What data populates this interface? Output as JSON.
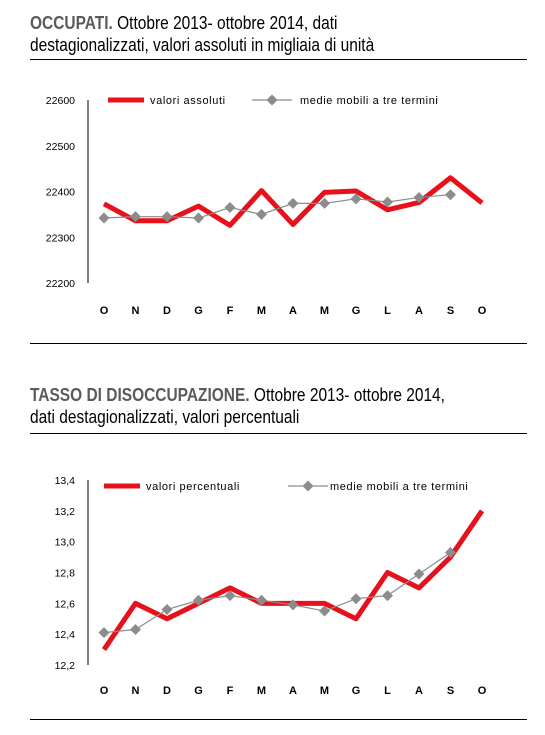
{
  "sections": [
    {
      "title_lead": "OCCUPATI.",
      "title_rest": " Ottobre 2013- ottobre 2014, dati destagionalizzati, valori assoluti in migliaia di unità"
    },
    {
      "title_lead": "TASSO DI DISOCCUPAZIONE.",
      "title_rest": " Ottobre 2013- ottobre 2014, dati destagionalizzati, valori percentuali"
    }
  ],
  "colors": {
    "lead": "#5a5a5a",
    "primary_line": "#e8101b",
    "secondary_line": "#8c8c8c"
  },
  "chart_data": [
    {
      "type": "line",
      "categories": [
        "O",
        "N",
        "D",
        "G",
        "F",
        "M",
        "A",
        "M",
        "G",
        "L",
        "A",
        "S",
        "O"
      ],
      "series": [
        {
          "name": "valori assoluti",
          "values": [
            22373,
            22336,
            22336,
            22368,
            22326,
            22402,
            22328,
            22398,
            22401,
            22360,
            22376,
            22430,
            22375
          ]
        },
        {
          "name": "medie mobili a tre termini",
          "values": [
            22342,
            22345,
            22345,
            22342,
            22365,
            22350,
            22374,
            22374,
            22384,
            22377,
            22387,
            22393,
            null
          ]
        }
      ],
      "yticks": [
        "22600",
        "22500",
        "22400",
        "22300",
        "22200"
      ],
      "ylim": [
        22200,
        22600
      ],
      "grid": false,
      "legend": "top"
    },
    {
      "type": "line",
      "categories": [
        "O",
        "N",
        "D",
        "G",
        "F",
        "M",
        "A",
        "M",
        "G",
        "L",
        "A",
        "S",
        "O"
      ],
      "series": [
        {
          "name": "valori percentuali",
          "values": [
            12.3,
            12.6,
            12.5,
            12.6,
            12.7,
            12.6,
            12.6,
            12.6,
            12.5,
            12.8,
            12.7,
            12.9,
            13.2
          ]
        },
        {
          "name": "medie mobili a tre termini",
          "values": [
            12.41,
            12.43,
            12.56,
            12.62,
            12.65,
            12.62,
            12.59,
            12.55,
            12.63,
            12.65,
            12.79,
            12.93,
            null
          ]
        }
      ],
      "yticks": [
        "13,4",
        "13,2",
        "13,0",
        "12,8",
        "12,6",
        "12,4",
        "12,2"
      ],
      "ylim": [
        12.2,
        13.4
      ],
      "grid": false,
      "legend": "top"
    }
  ]
}
